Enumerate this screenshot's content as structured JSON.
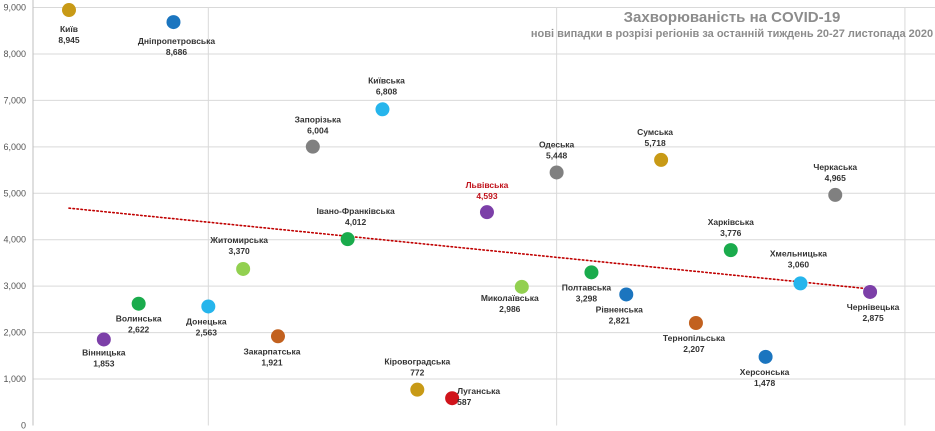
{
  "chart_data": {
    "type": "scatter",
    "title": "Захворюваність на COVID-19",
    "subtitle": "нові випадки в розрізі регіонів за останній тиждень 20-27 листопада 2020",
    "ylim": [
      0,
      9000
    ],
    "y_ticks": [
      "0",
      "1,000",
      "2,000",
      "3,000",
      "4,000",
      "5,000",
      "6,000",
      "7,000",
      "8,000",
      "9,000"
    ],
    "trendline": {
      "type": "linear",
      "start": 4680,
      "end": 2940,
      "color": "#c00000",
      "style": "dotted"
    },
    "points": [
      {
        "name": "Київ",
        "value": 8945,
        "value_label": "8,945",
        "color": "#c89a16"
      },
      {
        "name": "Вінницька",
        "value": 1853,
        "value_label": "1,853",
        "color": "#7c3fa8"
      },
      {
        "name": "Волинська",
        "value": 2622,
        "value_label": "2,622",
        "color": "#1aab4c"
      },
      {
        "name": "Дніпропетровська",
        "value": 8686,
        "value_label": "8,686",
        "color": "#1b75bf"
      },
      {
        "name": "Донецька",
        "value": 2563,
        "value_label": "2,563",
        "color": "#26b5ec"
      },
      {
        "name": "Житомирська",
        "value": 3370,
        "value_label": "3,370",
        "color": "#92d050"
      },
      {
        "name": "Закарпатська",
        "value": 1921,
        "value_label": "1,921",
        "color": "#c2611f"
      },
      {
        "name": "Запорізька",
        "value": 6004,
        "value_label": "6,004",
        "color": "#808080"
      },
      {
        "name": "Івано-Франківська",
        "value": 4012,
        "value_label": "4,012",
        "color": "#1aab4c"
      },
      {
        "name": "Київська",
        "value": 6808,
        "value_label": "6,808",
        "color": "#26b5ec"
      },
      {
        "name": "Кіровоградська",
        "value": 772,
        "value_label": "772",
        "color": "#c89a16"
      },
      {
        "name": "Луганська",
        "value": 587,
        "value_label": "587",
        "color": "#d0141b"
      },
      {
        "name": "Львівська",
        "value": 4593,
        "value_label": "4,593",
        "color": "#7c3fa8",
        "label_color": "#c0121b"
      },
      {
        "name": "Миколаївська",
        "value": 2986,
        "value_label": "2,986",
        "color": "#92d050"
      },
      {
        "name": "Одеська",
        "value": 5448,
        "value_label": "5,448",
        "color": "#808080"
      },
      {
        "name": "Полтавська",
        "value": 3298,
        "value_label": "3,298",
        "color": "#1aab4c"
      },
      {
        "name": "Рівненська",
        "value": 2821,
        "value_label": "2,821",
        "color": "#1b75bf"
      },
      {
        "name": "Сумська",
        "value": 5718,
        "value_label": "5,718",
        "color": "#c89a16"
      },
      {
        "name": "Тернопільська",
        "value": 2207,
        "value_label": "2,207",
        "color": "#c2611f"
      },
      {
        "name": "Харківська",
        "value": 3776,
        "value_label": "3,776",
        "color": "#1aab4c"
      },
      {
        "name": "Херсонська",
        "value": 1478,
        "value_label": "1,478",
        "color": "#1b75bf"
      },
      {
        "name": "Хмельницька",
        "value": 3060,
        "value_label": "3,060",
        "color": "#26b5ec"
      },
      {
        "name": "Черкаська",
        "value": 4965,
        "value_label": "4,965",
        "color": "#808080"
      },
      {
        "name": "Чернівецька",
        "value": 2875,
        "value_label": "2,875",
        "color": "#7c3fa8"
      }
    ]
  }
}
